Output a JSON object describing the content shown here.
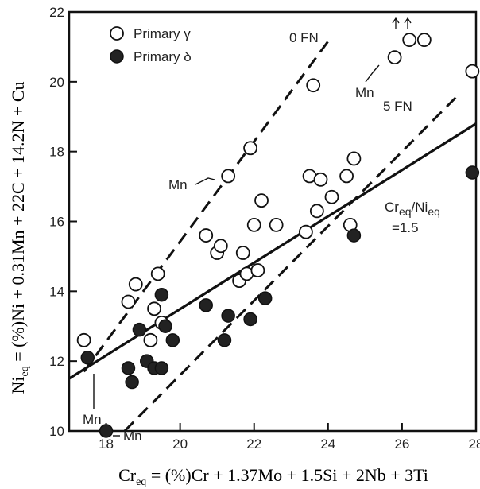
{
  "chart_data": {
    "type": "scatter",
    "xlabel": "Cr_eq = (%)Cr + 1.37Mo + 1.5Si + 2Nb + 3Ti",
    "xlabel_parts": {
      "main": "Cr",
      "sub": "eq",
      "rest": " = (%)Cr + 1.37Mo + 1.5Si + 2Nb + 3Ti"
    },
    "ylabel": "Ni_eq = (%)Ni + 0.31Mn + 22C + 14.2N + Cu",
    "ylabel_parts": {
      "main": "Ni",
      "sub": "eq",
      "rest": " = (%)Ni + 0.31Mn + 22C + 14.2N + Cu"
    },
    "xlim": [
      17,
      28
    ],
    "ylim": [
      10,
      22
    ],
    "x_ticks": [
      18,
      20,
      22,
      24,
      26,
      28
    ],
    "y_ticks": [
      10,
      12,
      14,
      16,
      18,
      20,
      22
    ],
    "grid": false,
    "legend_position": "top-left",
    "series": [
      {
        "name": "Primary γ",
        "marker": "open-circle",
        "points": [
          [
            17.4,
            12.6
          ],
          [
            18.6,
            13.7
          ],
          [
            18.8,
            14.2
          ],
          [
            19.4,
            14.5
          ],
          [
            19.3,
            13.5
          ],
          [
            19.5,
            13.1
          ],
          [
            19.2,
            12.6
          ],
          [
            20.7,
            15.6
          ],
          [
            21.0,
            15.1
          ],
          [
            21.1,
            15.3
          ],
          [
            21.3,
            17.3
          ],
          [
            21.6,
            14.3
          ],
          [
            21.8,
            14.5
          ],
          [
            21.7,
            15.1
          ],
          [
            21.9,
            18.1
          ],
          [
            22.0,
            15.9
          ],
          [
            22.1,
            14.6
          ],
          [
            22.2,
            16.6
          ],
          [
            22.6,
            15.9
          ],
          [
            23.4,
            15.7
          ],
          [
            23.5,
            17.3
          ],
          [
            23.6,
            19.9
          ],
          [
            23.7,
            16.3
          ],
          [
            23.8,
            17.2
          ],
          [
            24.1,
            16.7
          ],
          [
            24.5,
            17.3
          ],
          [
            24.6,
            15.9
          ],
          [
            24.7,
            17.8
          ],
          [
            25.8,
            20.7
          ],
          [
            26.2,
            21.2
          ],
          [
            26.6,
            21.2
          ],
          [
            27.9,
            20.3
          ]
        ]
      },
      {
        "name": "Primary δ",
        "marker": "filled-circle",
        "points": [
          [
            17.5,
            12.1
          ],
          [
            18.0,
            10.0
          ],
          [
            18.6,
            11.8
          ],
          [
            18.7,
            11.4
          ],
          [
            18.9,
            12.9
          ],
          [
            19.1,
            12.0
          ],
          [
            19.3,
            11.8
          ],
          [
            19.5,
            11.8
          ],
          [
            19.5,
            13.9
          ],
          [
            19.6,
            13.0
          ],
          [
            19.8,
            12.6
          ],
          [
            20.7,
            13.6
          ],
          [
            21.2,
            12.6
          ],
          [
            21.3,
            13.3
          ],
          [
            21.9,
            13.2
          ],
          [
            22.3,
            13.8
          ],
          [
            24.7,
            15.6
          ],
          [
            27.9,
            17.4
          ]
        ]
      }
    ],
    "reference_lines": [
      {
        "label": "0 FN",
        "style": "dashed",
        "from": [
          17.4,
          11.7
        ],
        "to": [
          24.1,
          21.3
        ]
      },
      {
        "label": "5 FN",
        "style": "dashed",
        "from": [
          18.5,
          10.0
        ],
        "to": [
          27.5,
          19.6
        ]
      },
      {
        "label": "Cr_eq / Ni_eq = 1.5",
        "style": "solid",
        "from": [
          17.0,
          11.5
        ],
        "to": [
          28.0,
          18.8
        ]
      }
    ],
    "annotations": {
      "zero_fn": "0 FN",
      "five_fn": "5 FN",
      "mn": "Mn",
      "ratio_line1_main": "Cr",
      "ratio_line1_sub1": "eq",
      "ratio_line1_mid": "/Ni",
      "ratio_line1_sub2": "eq",
      "ratio_line2": "=1.5"
    }
  }
}
